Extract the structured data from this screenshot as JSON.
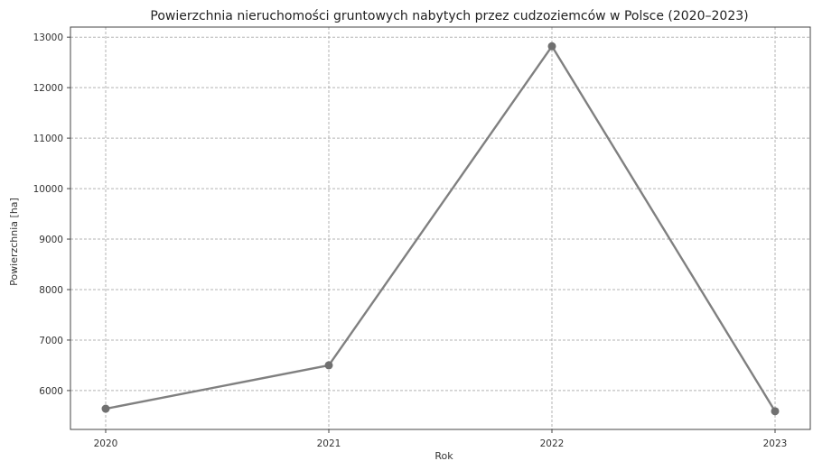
{
  "chart_data": {
    "type": "line",
    "title": "Powierzchnia nieruchomości gruntowych nabytych przez cudzoziemców w Polsce (2020–2023)",
    "xlabel": "Rok",
    "ylabel": "Powierzchnia [ha]",
    "x": [
      "2020",
      "2021",
      "2022",
      "2023"
    ],
    "series": [
      {
        "values": [
          5640,
          6500,
          12820,
          5590
        ]
      }
    ],
    "ylim": [
      5230,
      13200
    ],
    "yticks": [
      6000,
      7000,
      8000,
      9000,
      10000,
      11000,
      12000,
      13000
    ],
    "ytick_labels": [
      "6000",
      "7000",
      "8000",
      "9000",
      "10000",
      "11000",
      "12000",
      "13000"
    ],
    "grid": true,
    "legend": "none",
    "colors": {
      "line": "#808080",
      "marker": "#707070"
    }
  }
}
